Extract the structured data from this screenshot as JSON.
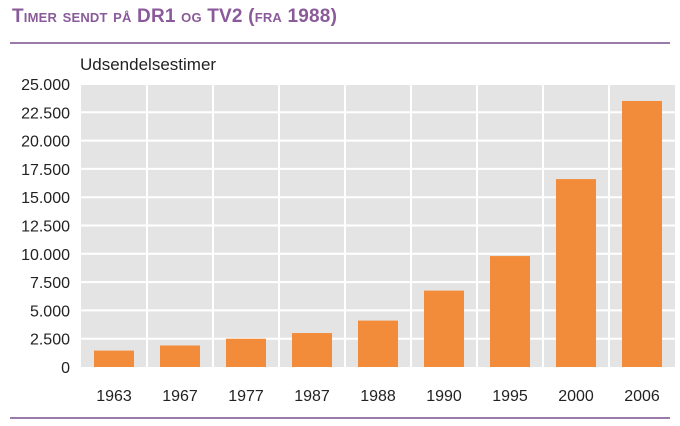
{
  "title": "Timer sendt på  DR1 og TV2 (fra 1988)",
  "chart_data": {
    "type": "bar",
    "ylabel": "Udsendelsestimer",
    "xlabel": "",
    "categories": [
      "1963",
      "1967",
      "1977",
      "1987",
      "1988",
      "1990",
      "1995",
      "2000",
      "2006"
    ],
    "values": [
      1450,
      1900,
      2500,
      3000,
      4100,
      6750,
      9800,
      16600,
      23500
    ],
    "ylim": [
      0,
      25000
    ],
    "yticks": [
      0,
      2500,
      5000,
      7500,
      10000,
      12500,
      15000,
      17500,
      20000,
      22500,
      25000
    ],
    "ytick_labels": [
      "0",
      "2.500",
      "5.000",
      "7.500",
      "10.000",
      "12.500",
      "15.000",
      "17.500",
      "20.000",
      "22.500",
      "25.000"
    ],
    "grid": true,
    "colors": {
      "bar": "#f28c3a",
      "plot_background": "#e4e4e4",
      "grid": "#ffffff",
      "title": "#8a5a9a",
      "rule": "#9a7aa8"
    }
  }
}
